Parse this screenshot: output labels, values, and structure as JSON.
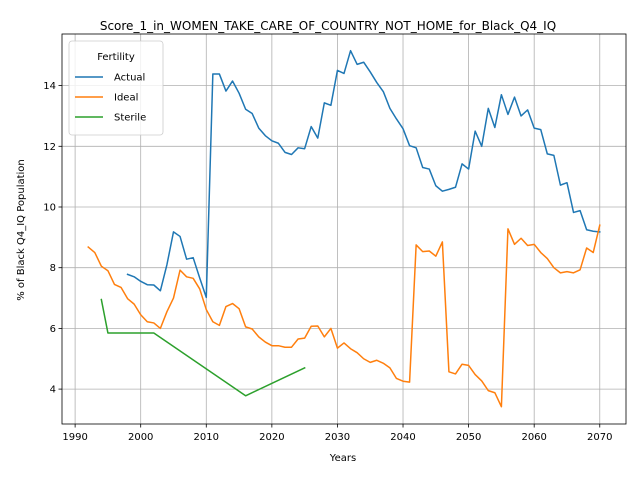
{
  "chart_data": {
    "type": "line",
    "title": "Score_1_in_WOMEN_TAKE_CARE_OF_COUNTRY_NOT_HOME_for_Black_Q4_IQ",
    "xlabel": "Years",
    "ylabel": "% of Black Q4_IQ Population",
    "xlim": [
      1988,
      2074
    ],
    "ylim": [
      2.85,
      15.7
    ],
    "xticks": [
      1990,
      2000,
      2010,
      2020,
      2030,
      2040,
      2050,
      2060,
      2070
    ],
    "yticks": [
      4,
      6,
      8,
      10,
      12,
      14
    ],
    "grid": true,
    "legend": {
      "title": "Fertility",
      "position": "upper-left"
    },
    "series": [
      {
        "name": "Actual",
        "color": "#1f77b4",
        "x": [
          1998,
          1999,
          2000,
          2001,
          2002,
          2003,
          2004,
          2005,
          2006,
          2007,
          2008,
          2009,
          2010,
          2011,
          2012,
          2013,
          2014,
          2015,
          2016,
          2017,
          2018,
          2019,
          2020,
          2021,
          2022,
          2023,
          2024,
          2025,
          2026,
          2027,
          2028,
          2029,
          2030,
          2031,
          2032,
          2033,
          2034,
          2035,
          2036,
          2037,
          2038,
          2039,
          2040,
          2041,
          2042,
          2043,
          2044,
          2045,
          2046,
          2047,
          2048,
          2049,
          2050,
          2051,
          2052,
          2053,
          2054,
          2055,
          2056,
          2057,
          2058,
          2059,
          2060,
          2061,
          2062,
          2063,
          2064,
          2065,
          2066,
          2067,
          2068,
          2069,
          2070
        ],
        "y": [
          7.78,
          7.7,
          7.55,
          7.44,
          7.43,
          7.24,
          8.1,
          9.18,
          9.03,
          8.28,
          8.33,
          7.66,
          7.02,
          14.38,
          14.38,
          13.82,
          14.15,
          13.75,
          13.22,
          13.08,
          12.6,
          12.35,
          12.18,
          12.1,
          11.8,
          11.73,
          11.95,
          11.92,
          12.65,
          12.27,
          13.43,
          13.35,
          14.5,
          14.4,
          15.15,
          14.7,
          14.77,
          14.45,
          14.1,
          13.8,
          13.25,
          12.9,
          12.58,
          12.02,
          11.95,
          11.3,
          11.25,
          10.7,
          10.52,
          10.58,
          10.65,
          11.42,
          11.25,
          12.5,
          12.0,
          13.25,
          12.62,
          13.7,
          13.05,
          13.62,
          13.0,
          13.2,
          12.6,
          12.55,
          11.75,
          11.7,
          10.72,
          10.8,
          9.82,
          9.88,
          9.25,
          9.2,
          9.18
        ]
      },
      {
        "name": "Ideal",
        "color": "#ff7f0e",
        "x": [
          1992,
          1993,
          1994,
          1995,
          1996,
          1997,
          1998,
          1999,
          2000,
          2001,
          2002,
          2003,
          2004,
          2005,
          2006,
          2007,
          2008,
          2009,
          2010,
          2011,
          2012,
          2013,
          2014,
          2015,
          2016,
          2017,
          2018,
          2019,
          2020,
          2021,
          2022,
          2023,
          2024,
          2025,
          2026,
          2027,
          2028,
          2029,
          2030,
          2031,
          2032,
          2033,
          2034,
          2035,
          2036,
          2037,
          2038,
          2039,
          2040,
          2041,
          2042,
          2043,
          2044,
          2045,
          2046,
          2047,
          2048,
          2049,
          2050,
          2051,
          2052,
          2053,
          2054,
          2055,
          2056,
          2057,
          2058,
          2059,
          2060,
          2061,
          2062,
          2063,
          2064,
          2065,
          2066,
          2067,
          2068,
          2069,
          2070
        ],
        "y": [
          8.68,
          8.5,
          8.05,
          7.9,
          7.45,
          7.35,
          6.98,
          6.8,
          6.45,
          6.22,
          6.18,
          6.0,
          6.55,
          7.0,
          7.92,
          7.7,
          7.65,
          7.3,
          6.62,
          6.22,
          6.1,
          6.72,
          6.82,
          6.65,
          6.05,
          5.98,
          5.72,
          5.55,
          5.43,
          5.43,
          5.38,
          5.38,
          5.65,
          5.68,
          6.07,
          6.08,
          5.72,
          6.0,
          5.35,
          5.52,
          5.33,
          5.2,
          5.0,
          4.88,
          4.95,
          4.85,
          4.7,
          4.35,
          4.26,
          4.23,
          8.75,
          8.53,
          8.55,
          8.38,
          8.85,
          4.57,
          4.5,
          4.82,
          4.78,
          4.48,
          4.27,
          3.95,
          3.88,
          3.42,
          9.28,
          8.77,
          8.97,
          8.73,
          8.77,
          8.5,
          8.3,
          8.0,
          7.83,
          7.87,
          7.83,
          7.93,
          8.65,
          8.5,
          9.4
        ]
      },
      {
        "name": "Sterile",
        "color": "#2ca02c",
        "x": [
          1994,
          1995,
          1996,
          1997,
          1998,
          1999,
          2000,
          2001,
          2002,
          2016,
          2025
        ],
        "y": [
          6.95,
          5.85,
          5.85,
          5.85,
          5.85,
          5.85,
          5.85,
          5.85,
          5.85,
          3.78,
          4.7
        ]
      }
    ]
  }
}
